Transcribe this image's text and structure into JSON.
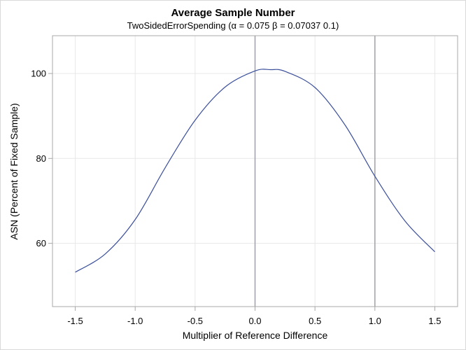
{
  "chart": {
    "title": "Average Sample Number",
    "subtitle": "TwoSidedErrorSpending (α = 0.075  β = 0.07037 0.1)",
    "xlabel": "Multiplier of Reference Difference",
    "ylabel": "ASN (Percent of Fixed Sample)"
  },
  "chart_data": {
    "type": "line",
    "title": "Average Sample Number",
    "subtitle": "TwoSidedErrorSpending (α = 0.075  β = 0.07037 0.1)",
    "xlabel": "Multiplier of Reference Difference",
    "ylabel": "ASN (Percent of Fixed Sample)",
    "xlim": [
      -1.69,
      1.69
    ],
    "ylim": [
      45.1,
      108.9
    ],
    "xticks": [
      -1.5,
      -1.0,
      -0.5,
      0.0,
      0.5,
      1.0,
      1.5
    ],
    "xtick_labels": [
      "-1.5",
      "-1.0",
      "-0.5",
      "0.0",
      "0.5",
      "1.0",
      "1.5"
    ],
    "yticks": [
      60,
      80,
      100
    ],
    "ytick_labels": [
      "60",
      "80",
      "100"
    ],
    "grid": true,
    "reference_lines_x": [
      0.0,
      1.0
    ],
    "line_color": "#3b4f9b",
    "series": [
      {
        "name": "ASN",
        "x": [
          -1.5,
          -1.25,
          -1.0,
          -0.75,
          -0.5,
          -0.25,
          0.0,
          0.13,
          0.25,
          0.5,
          0.75,
          1.0,
          1.25,
          1.5
        ],
        "values": [
          53.2,
          57.5,
          65.6,
          77.8,
          89.0,
          96.8,
          100.6,
          100.9,
          100.5,
          96.7,
          87.9,
          75.8,
          65.3,
          58.0
        ]
      }
    ]
  }
}
